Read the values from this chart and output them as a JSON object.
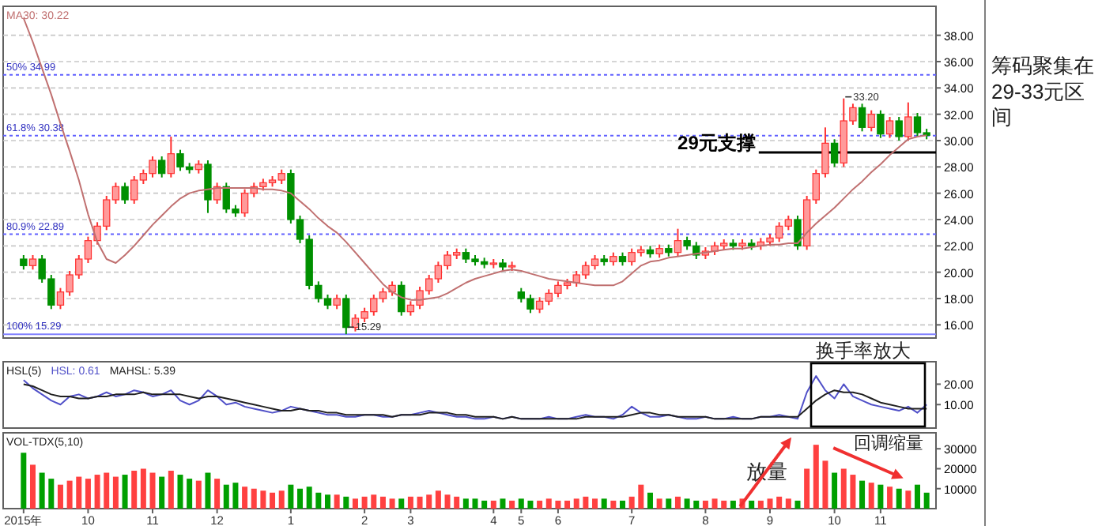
{
  "chart_data": [
    {
      "type": "candlestick",
      "categories": [
        null,
        null,
        null,
        null,
        null,
        null,
        null,
        null,
        null,
        null,
        null,
        null,
        null,
        null,
        null,
        null,
        null,
        null,
        null,
        null,
        null,
        null,
        null,
        null,
        null,
        null,
        null,
        null,
        null,
        null,
        null,
        null,
        null,
        null,
        null,
        null,
        null,
        null,
        null,
        null,
        null,
        null,
        null,
        null,
        null,
        null,
        null,
        null,
        null,
        null,
        null,
        null,
        null,
        null,
        null,
        null,
        null,
        null,
        null,
        null,
        null,
        null,
        null,
        null,
        null,
        null,
        null,
        null,
        null,
        null,
        null,
        null,
        null,
        null,
        null,
        null,
        null,
        null,
        null,
        null,
        null,
        null,
        null,
        null,
        null,
        null,
        null,
        null,
        null,
        null,
        null,
        null,
        null,
        null,
        null,
        null,
        null,
        null,
        null
      ],
      "ohlc": [
        [
          21.0,
          21.3,
          20.2,
          20.5
        ],
        [
          20.5,
          21.3,
          20.2,
          21.0
        ],
        [
          21.0,
          21.3,
          19.2,
          19.5
        ],
        [
          19.5,
          19.8,
          17.2,
          17.5
        ],
        [
          17.5,
          18.8,
          17.2,
          18.5
        ],
        [
          18.5,
          20.1,
          18.2,
          19.8
        ],
        [
          19.8,
          21.3,
          19.5,
          21.0
        ],
        [
          21.0,
          22.7,
          20.7,
          22.4
        ],
        [
          22.4,
          23.8,
          22.1,
          23.5
        ],
        [
          23.5,
          25.8,
          23.2,
          25.5
        ],
        [
          25.5,
          26.8,
          25.2,
          26.5
        ],
        [
          26.5,
          26.8,
          25.2,
          25.5
        ],
        [
          25.5,
          27.3,
          25.2,
          27.0
        ],
        [
          27.0,
          27.8,
          26.7,
          27.5
        ],
        [
          27.5,
          28.8,
          27.2,
          28.5
        ],
        [
          28.5,
          28.8,
          27.2,
          27.5
        ],
        [
          27.5,
          30.3,
          27.2,
          29.0
        ],
        [
          29.0,
          29.3,
          27.7,
          28.0
        ],
        [
          28.0,
          28.3,
          27.5,
          27.8
        ],
        [
          27.8,
          28.5,
          27.5,
          28.2
        ],
        [
          28.2,
          28.5,
          24.5,
          25.5
        ],
        [
          25.5,
          26.8,
          25.2,
          26.5
        ],
        [
          26.5,
          26.8,
          24.5,
          24.8
        ],
        [
          24.8,
          25.1,
          24.2,
          24.5
        ],
        [
          24.5,
          26.3,
          24.2,
          26.0
        ],
        [
          26.0,
          26.8,
          25.7,
          26.5
        ],
        [
          26.5,
          27.1,
          26.2,
          26.8
        ],
        [
          26.8,
          27.3,
          26.5,
          27.0
        ],
        [
          27.0,
          27.8,
          26.7,
          27.5
        ],
        [
          27.5,
          27.8,
          23.7,
          24.0
        ],
        [
          24.0,
          24.3,
          22.2,
          22.5
        ],
        [
          22.5,
          22.8,
          18.7,
          19.0
        ],
        [
          19.0,
          19.3,
          17.7,
          18.0
        ],
        [
          18.0,
          18.3,
          17.2,
          17.5
        ],
        [
          17.5,
          18.3,
          17.2,
          18.0
        ],
        [
          18.0,
          18.3,
          15.29,
          15.8
        ],
        [
          15.8,
          16.8,
          15.5,
          16.5
        ],
        [
          16.5,
          17.3,
          16.2,
          17.0
        ],
        [
          17.0,
          18.3,
          16.7,
          18.0
        ],
        [
          18.0,
          18.8,
          17.7,
          18.5
        ],
        [
          18.5,
          19.3,
          18.2,
          19.0
        ],
        [
          19.0,
          19.3,
          16.7,
          17.0
        ],
        [
          17.0,
          17.8,
          16.7,
          17.5
        ],
        [
          17.5,
          18.9,
          17.2,
          18.6
        ],
        [
          18.6,
          19.8,
          18.3,
          19.5
        ],
        [
          19.5,
          20.8,
          19.2,
          20.5
        ],
        [
          20.5,
          21.6,
          20.2,
          21.3
        ],
        [
          21.3,
          21.8,
          21.0,
          21.5
        ],
        [
          21.5,
          21.8,
          20.7,
          21.0
        ],
        [
          21.0,
          21.3,
          20.5,
          20.8
        ],
        [
          20.8,
          21.1,
          20.3,
          20.6
        ],
        [
          20.6,
          21.0,
          20.3,
          20.7
        ],
        [
          20.7,
          21.0,
          20.1,
          20.4
        ],
        [
          20.4,
          20.8,
          20.1,
          20.5
        ],
        [
          18.5,
          18.8,
          17.7,
          18.0
        ],
        [
          18.0,
          18.3,
          16.9,
          17.2
        ],
        [
          17.2,
          18.1,
          16.9,
          17.8
        ],
        [
          17.8,
          18.7,
          17.5,
          18.4
        ],
        [
          18.4,
          19.3,
          18.1,
          19.0
        ],
        [
          19.0,
          19.5,
          18.7,
          19.2
        ],
        [
          19.2,
          20.1,
          18.9,
          19.8
        ],
        [
          19.8,
          20.8,
          19.5,
          20.5
        ],
        [
          20.5,
          21.3,
          20.2,
          21.0
        ],
        [
          21.0,
          21.3,
          20.5,
          20.8
        ],
        [
          20.8,
          21.5,
          20.5,
          21.2
        ],
        [
          21.2,
          21.5,
          20.5,
          20.8
        ],
        [
          20.8,
          21.8,
          20.5,
          21.5
        ],
        [
          21.5,
          22.0,
          21.2,
          21.7
        ],
        [
          21.7,
          22.0,
          21.1,
          21.4
        ],
        [
          21.4,
          22.1,
          21.1,
          21.8
        ],
        [
          21.8,
          22.1,
          21.2,
          21.5
        ],
        [
          21.5,
          23.3,
          21.2,
          22.4
        ],
        [
          22.4,
          22.7,
          21.7,
          22.0
        ],
        [
          22.0,
          22.3,
          21.0,
          21.3
        ],
        [
          21.3,
          21.9,
          21.0,
          21.6
        ],
        [
          21.6,
          22.3,
          21.3,
          22.0
        ],
        [
          22.0,
          22.5,
          21.7,
          22.2
        ],
        [
          22.2,
          22.5,
          21.7,
          22.0
        ],
        [
          22.0,
          22.5,
          21.7,
          22.2
        ],
        [
          22.2,
          22.5,
          21.7,
          22.0
        ],
        [
          22.0,
          22.6,
          21.7,
          22.3
        ],
        [
          22.3,
          22.9,
          22.0,
          22.6
        ],
        [
          22.6,
          23.8,
          22.3,
          23.5
        ],
        [
          23.5,
          24.3,
          23.2,
          24.0
        ],
        [
          24.0,
          24.3,
          21.7,
          22.0
        ],
        [
          22.0,
          25.8,
          21.7,
          25.5
        ],
        [
          25.5,
          27.8,
          25.2,
          27.5
        ],
        [
          27.5,
          31.0,
          27.2,
          29.8
        ],
        [
          29.8,
          30.1,
          28.0,
          28.3
        ],
        [
          28.3,
          33.2,
          28.0,
          31.5
        ],
        [
          31.5,
          32.8,
          31.2,
          32.5
        ],
        [
          32.5,
          32.8,
          30.7,
          31.0
        ],
        [
          31.0,
          32.3,
          30.7,
          32.0
        ],
        [
          32.0,
          32.3,
          30.2,
          30.5
        ],
        [
          30.5,
          31.8,
          30.2,
          31.5
        ],
        [
          31.5,
          31.8,
          30.0,
          30.3
        ],
        [
          30.3,
          32.9,
          30.0,
          31.8
        ],
        [
          31.8,
          32.1,
          30.3,
          30.6
        ],
        [
          30.6,
          30.9,
          30.1,
          30.4
        ]
      ],
      "series": [
        {
          "type": "line",
          "name": "MA30: 30.22",
          "color": "#c07070",
          "values": [
            39.3,
            37.5,
            35.5,
            33.5,
            31.3,
            29.2,
            27.0,
            24.4,
            22.3,
            21.0,
            20.7,
            21.3,
            22.0,
            22.8,
            23.6,
            24.3,
            25.0,
            25.6,
            26.0,
            26.2,
            26.3,
            26.4,
            26.4,
            26.4,
            26.4,
            26.4,
            26.3,
            26.3,
            26.2,
            26.0,
            25.4,
            24.8,
            24.1,
            23.5,
            23.0,
            22.3,
            21.5,
            20.7,
            19.9,
            19.1,
            18.5,
            18.1,
            17.9,
            17.9,
            18.0,
            18.1,
            18.4,
            18.8,
            19.2,
            19.5,
            19.7,
            19.9,
            20.1,
            20.2,
            20.1,
            19.9,
            19.7,
            19.5,
            19.4,
            19.3,
            19.2,
            19.1,
            19.0,
            19.0,
            19.0,
            19.3,
            19.9,
            20.5,
            20.8,
            20.9,
            21.1,
            21.2,
            21.3,
            21.4,
            21.5,
            21.6,
            21.7,
            21.8,
            21.8,
            21.9,
            22.0,
            22.1,
            22.1,
            22.2,
            22.2,
            23.0,
            23.7,
            24.3,
            24.9,
            25.6,
            26.3,
            26.9,
            27.6,
            28.2,
            28.9,
            29.5,
            30.1,
            30.3,
            30.4
          ]
        }
      ],
      "ylim": [
        15,
        40.2
      ],
      "yticks": [
        {
          "value": 16,
          "label": "16.00"
        },
        {
          "value": 18,
          "label": "18.00"
        },
        {
          "value": 20,
          "label": "20.00"
        },
        {
          "value": 22,
          "label": "22.00"
        },
        {
          "value": 24,
          "label": "24.00"
        },
        {
          "value": 26,
          "label": "26.00"
        },
        {
          "value": 28,
          "label": "28.00"
        },
        {
          "value": 30,
          "label": "30.00"
        },
        {
          "value": 32,
          "label": "32.00"
        },
        {
          "value": 34,
          "label": "34.00"
        },
        {
          "value": 36,
          "label": "36.00"
        },
        {
          "value": 38,
          "label": "38.00"
        }
      ],
      "grid": "y",
      "legend": "top left",
      "tick_labels": "y",
      "ref_lines": [
        {
          "axis": "y",
          "value": 34.99,
          "label": "50% 34.99",
          "color": "#6060ff",
          "line_style": "dotted"
        },
        {
          "axis": "y",
          "value": 30.38,
          "label": "61.8% 30.38",
          "color": "#6060ff",
          "line_style": "dotted"
        },
        {
          "axis": "y",
          "value": 22.89,
          "label": "80.9% 22.89",
          "color": "#6060ff",
          "line_style": "dotted"
        },
        {
          "axis": "y",
          "value": 15.29,
          "label": "100% 15.29",
          "color": "#8080ff",
          "line_style": "solid"
        },
        {
          "axis": "y",
          "value": 29.1,
          "label": "29元支撑",
          "color": "#000000",
          "line_style": "solid"
        }
      ],
      "annotations": [
        "筹码聚集在29-33元区间",
        {
          "text": "33.20",
          "y": 33.2
        },
        {
          "text": "15.29",
          "y": 15.29
        }
      ]
    },
    {
      "type": "line",
      "title": "HSL(5)",
      "categories": [
        null,
        null,
        null,
        null,
        null,
        null,
        null,
        null,
        null,
        null,
        null,
        null,
        null,
        null,
        null,
        null,
        null,
        null,
        null,
        null,
        null,
        null,
        null,
        null,
        null,
        null,
        null,
        null,
        null,
        null,
        null,
        null,
        null,
        null,
        null,
        null,
        null,
        null,
        null,
        null,
        null,
        null,
        null,
        null,
        null,
        null,
        null,
        null,
        null,
        null,
        null,
        null,
        null,
        null,
        null,
        null,
        null,
        null,
        null,
        null,
        null,
        null,
        null,
        null,
        null,
        null,
        null,
        null,
        null,
        null,
        null,
        null,
        null,
        null,
        null,
        null,
        null,
        null,
        null,
        null,
        null,
        null,
        null,
        null,
        null,
        null,
        null,
        null,
        null,
        null,
        null,
        null,
        null,
        null,
        null,
        null,
        null,
        null,
        null
      ],
      "series": [
        {
          "name": "HSL: 0.61",
          "color": "#5050c8",
          "values": [
            22,
            18,
            15,
            12,
            10,
            14,
            15,
            13,
            14,
            16,
            14,
            15,
            17,
            16,
            14,
            15,
            17,
            12,
            10,
            12,
            17,
            14,
            10,
            11,
            9,
            8,
            7,
            6,
            7,
            9,
            8,
            7,
            6,
            5,
            5,
            4,
            4,
            5,
            5,
            4,
            4,
            5,
            5,
            6,
            7,
            6,
            5,
            4,
            4,
            3,
            3,
            4,
            3,
            4,
            3,
            3,
            3,
            4,
            3,
            3,
            4,
            5,
            4,
            4,
            3,
            5,
            9,
            6,
            4,
            4,
            5,
            4,
            3,
            3,
            4,
            3,
            3,
            4,
            3,
            3,
            4,
            4,
            5,
            4,
            3,
            16,
            24,
            17,
            13,
            20,
            14,
            12,
            10,
            9,
            8,
            7,
            9,
            6,
            10
          ]
        },
        {
          "name": "MAHSL: 5.39",
          "color": "#202020",
          "values": [
            20,
            19,
            17,
            15,
            14,
            14,
            13,
            13,
            14,
            14,
            15,
            15,
            15,
            16,
            15,
            15,
            15,
            15,
            14,
            13,
            14,
            14,
            13,
            12,
            11,
            10,
            9,
            8,
            7,
            7,
            8,
            7,
            7,
            6,
            6,
            5,
            5,
            5,
            5,
            5,
            4,
            5,
            5,
            5,
            6,
            6,
            6,
            5,
            5,
            4,
            4,
            4,
            3,
            4,
            3,
            3,
            3,
            3,
            3,
            3,
            3,
            4,
            4,
            4,
            4,
            4,
            5,
            6,
            6,
            5,
            5,
            4,
            4,
            4,
            4,
            3,
            3,
            3,
            3,
            3,
            4,
            4,
            4,
            4,
            4,
            8,
            12,
            15,
            17,
            16,
            16,
            15,
            13,
            11,
            10,
            9,
            8,
            8,
            8
          ]
        }
      ],
      "ylim": [
        -1.5,
        31
      ],
      "yticks": [
        {
          "value": 10,
          "label": "10.00"
        },
        {
          "value": 20,
          "label": "20.00"
        }
      ],
      "legend": "top left",
      "tick_labels": "y",
      "annotations": [
        "换手率放大"
      ]
    },
    {
      "type": "bar",
      "title": "VOL-TDX(5,10)",
      "categories": [
        "2015年",
        null,
        null,
        null,
        null,
        null,
        null,
        "10",
        null,
        null,
        null,
        null,
        null,
        null,
        "11",
        null,
        null,
        null,
        null,
        null,
        null,
        "12",
        null,
        null,
        null,
        null,
        null,
        null,
        null,
        "1",
        null,
        null,
        null,
        null,
        null,
        null,
        null,
        "2",
        null,
        null,
        null,
        null,
        "3",
        null,
        null,
        null,
        null,
        null,
        null,
        null,
        null,
        "4",
        null,
        null,
        "5",
        null,
        null,
        null,
        "6",
        null,
        null,
        null,
        null,
        null,
        null,
        null,
        "7",
        null,
        null,
        null,
        null,
        null,
        null,
        null,
        "8",
        null,
        null,
        null,
        null,
        null,
        null,
        "9",
        null,
        null,
        null,
        null,
        null,
        null,
        "10",
        null,
        null,
        null,
        null,
        "11",
        null,
        null,
        null,
        null,
        null
      ],
      "values": [
        28000,
        22000,
        18000,
        15000,
        12000,
        14000,
        16000,
        15000,
        17000,
        18000,
        16000,
        17000,
        19000,
        20000,
        18000,
        16000,
        19000,
        17000,
        15000,
        14000,
        18000,
        15000,
        12000,
        13000,
        11000,
        10000,
        9000,
        8000,
        9000,
        12000,
        10000,
        11000,
        8000,
        7000,
        7000,
        6000,
        5000,
        6000,
        7000,
        6000,
        5000,
        5000,
        6000,
        6000,
        7000,
        9000,
        7000,
        6000,
        5000,
        5000,
        4000,
        4000,
        5000,
        4000,
        5000,
        4000,
        4000,
        5000,
        4000,
        4000,
        5000,
        6000,
        5000,
        5000,
        4000,
        4000,
        6000,
        12000,
        8000,
        5000,
        5000,
        6000,
        5000,
        4000,
        4000,
        5000,
        4000,
        4000,
        5000,
        4000,
        4000,
        5000,
        6000,
        5000,
        4000,
        20000,
        32000,
        24000,
        18000,
        20000,
        17000,
        14000,
        13000,
        12000,
        11000,
        10000,
        9000,
        12000,
        8000
      ],
      "colors": [
        "#00a000",
        "#ff4040",
        "#00a000",
        "#00a000",
        "#ff4040",
        "#ff4040",
        "#ff4040",
        "#ff4040",
        "#ff4040",
        "#ff4040",
        "#ff4040",
        "#00a000",
        "#ff4040",
        "#ff4040",
        "#ff4040",
        "#00a000",
        "#ff4040",
        "#00a000",
        "#00a000",
        "#ff4040",
        "#00a000",
        "#ff4040",
        "#00a000",
        "#00a000",
        "#ff4040",
        "#ff4040",
        "#ff4040",
        "#ff4040",
        "#ff4040",
        "#00a000",
        "#00a000",
        "#00a000",
        "#00a000",
        "#00a000",
        "#ff4040",
        "#00a000",
        "#ff4040",
        "#ff4040",
        "#ff4040",
        "#ff4040",
        "#ff4040",
        "#00a000",
        "#ff4040",
        "#ff4040",
        "#ff4040",
        "#ff4040",
        "#ff4040",
        "#ff4040",
        "#00a000",
        "#00a000",
        "#00a000",
        "#ff4040",
        "#00a000",
        "#ff4040",
        "#00a000",
        "#00a000",
        "#ff4040",
        "#ff4040",
        "#ff4040",
        "#ff4040",
        "#ff4040",
        "#ff4040",
        "#ff4040",
        "#00a000",
        "#ff4040",
        "#00a000",
        "#ff4040",
        "#ff4040",
        "#00a000",
        "#ff4040",
        "#00a000",
        "#ff4040",
        "#00a000",
        "#00a000",
        "#ff4040",
        "#ff4040",
        "#ff4040",
        "#00a000",
        "#ff4040",
        "#00a000",
        "#ff4040",
        "#ff4040",
        "#ff4040",
        "#ff4040",
        "#00a000",
        "#ff4040",
        "#ff4040",
        "#ff4040",
        "#00a000",
        "#ff4040",
        "#ff4040",
        "#00a000",
        "#ff4040",
        "#00a000",
        "#ff4040",
        "#00a000",
        "#ff4040",
        "#00a000",
        "#00a000"
      ],
      "ylim": [
        0,
        38000
      ],
      "yticks": [
        10000,
        20000,
        30000
      ],
      "annotations": [
        "放量",
        "回调缩量"
      ]
    }
  ]
}
